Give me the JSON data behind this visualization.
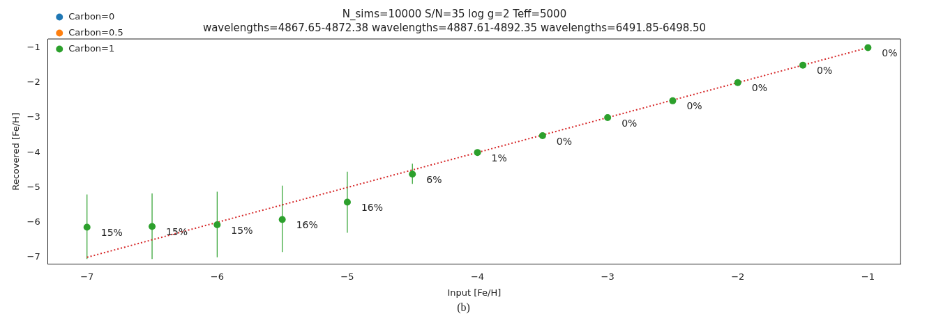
{
  "chart_data": {
    "type": "scatter",
    "title": "N_sims=10000 S/N=35 log g=2 Teff=5000",
    "subtitle": "wavelengths=4867.65-4872.38 wavelengths=4887.61-4892.35 wavelengths=6491.85-6498.50",
    "xlabel": "Input [Fe/H]",
    "ylabel": "Recovered [Fe/H]",
    "x": [
      -7,
      -6.5,
      -6,
      -5.5,
      -5,
      -4.5,
      -4,
      -3.5,
      -3,
      -2.5,
      -2,
      -1.5,
      -1
    ],
    "series": [
      {
        "name": "Carbon=0",
        "color": "#1f77b4",
        "values": [
          null,
          null,
          null,
          null,
          null,
          null,
          null,
          null,
          null,
          null,
          null,
          null,
          null
        ]
      },
      {
        "name": "Carbon=0.5",
        "color": "#ff7f0e",
        "values": [
          null,
          null,
          null,
          null,
          null,
          null,
          null,
          null,
          null,
          null,
          null,
          null,
          null
        ]
      },
      {
        "name": "Carbon=1",
        "color": "#2ca02c",
        "values": [
          -6.14,
          -6.12,
          -6.07,
          -5.92,
          -5.42,
          -4.62,
          -4.0,
          -3.52,
          -3.0,
          -2.52,
          -2.0,
          -1.5,
          -1.0
        ],
        "errors": [
          [
            -7.05,
            -5.2
          ],
          [
            -7.05,
            -5.17
          ],
          [
            -7.0,
            -5.12
          ],
          [
            -6.85,
            -4.95
          ],
          [
            -6.3,
            -4.55
          ],
          [
            -4.9,
            -4.32
          ],
          null,
          null,
          null,
          null,
          null,
          null,
          null
        ]
      },
      {
        "type": "line",
        "color": "#d62728",
        "line_style": "dotted",
        "marker": "none",
        "x": [
          -7,
          -1
        ],
        "values": [
          -7,
          -1
        ]
      }
    ],
    "xlim": [
      -7.3,
      -0.75
    ],
    "ylim": [
      -7.2,
      -0.75
    ],
    "xticks": [
      -7,
      -6,
      -5,
      -4,
      -3,
      -2,
      -1
    ],
    "yticks": [
      -7,
      -6,
      -5,
      -4,
      -3,
      -2,
      -1
    ],
    "grid": false,
    "legend": "top left",
    "marker": "circle",
    "annotations": [
      {
        "text": "15%",
        "x": -7,
        "y": -6.14
      },
      {
        "text": "15%",
        "x": -6.5,
        "y": -6.12
      },
      {
        "text": "15%",
        "x": -6,
        "y": -6.07
      },
      {
        "text": "16%",
        "x": -5.5,
        "y": -5.92
      },
      {
        "text": "16%",
        "x": -5,
        "y": -5.42
      },
      {
        "text": "6%",
        "x": -4.5,
        "y": -4.62
      },
      {
        "text": "1%",
        "x": -4,
        "y": -4.0
      },
      {
        "text": "0%",
        "x": -3.5,
        "y": -3.52
      },
      {
        "text": "0%",
        "x": -3,
        "y": -3.0
      },
      {
        "text": "0%",
        "x": -2.5,
        "y": -2.52
      },
      {
        "text": "0%",
        "x": -2,
        "y": -2.0
      },
      {
        "text": "0%",
        "x": -1.5,
        "y": -1.5
      },
      {
        "text": "0%",
        "x": -1,
        "y": -1.0
      },
      "(b)"
    ]
  }
}
